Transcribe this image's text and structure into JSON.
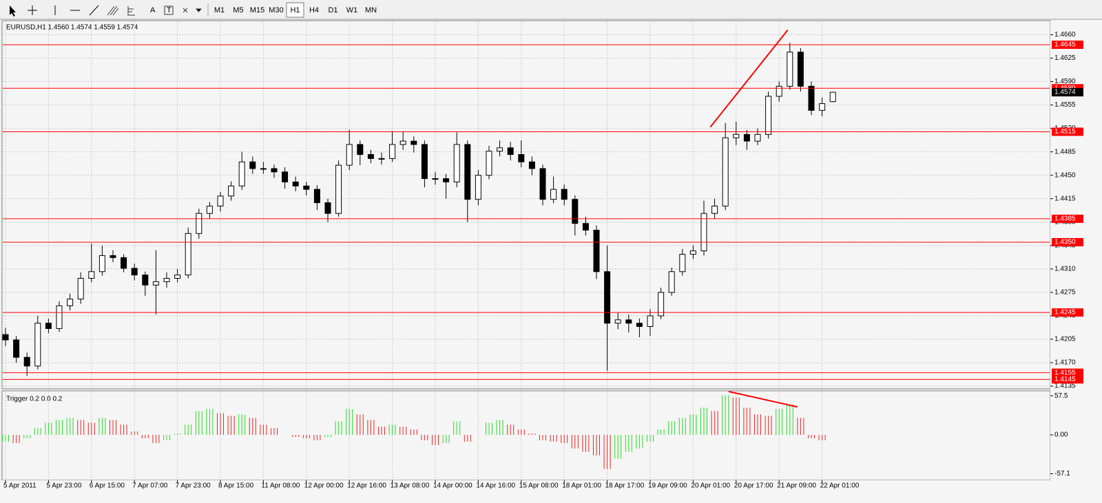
{
  "toolbar": {
    "text_tools": [
      "A",
      "T"
    ],
    "timeframes": [
      "M1",
      "M5",
      "M15",
      "M30",
      "H1",
      "H4",
      "D1",
      "W1",
      "MN"
    ],
    "active": "H1"
  },
  "chart_data": [
    {
      "type": "candlestick",
      "title": "EURUSD,H1  1.4560 1.4574 1.4559 1.4574",
      "bull_color": "#ffffff",
      "bear_color": "#000000",
      "line_color": "#000000",
      "ylim": [
        1.4131,
        1.4681
      ],
      "yticks": [
        1.4135,
        {
          "value": 1.417,
          "label": "1.4170"
        },
        1.4205,
        {
          "value": 1.424,
          "label": "1.4240"
        },
        1.4275,
        {
          "value": 1.431,
          "label": "1.4310"
        },
        1.4345,
        {
          "value": 1.438,
          "label": "1.4380"
        },
        1.4415,
        {
          "value": 1.445,
          "label": "1.4450"
        },
        1.4485,
        {
          "value": 1.452,
          "label": "1.4520"
        },
        1.4555,
        {
          "value": 1.459,
          "label": "1.4590"
        },
        1.4625,
        {
          "value": 1.466,
          "label": "1.4660"
        }
      ],
      "grid": true,
      "categories": [
        "5 Apr 2011",
        null,
        null,
        null,
        "5 Apr 23:00",
        null,
        null,
        null,
        "6 Apr 15:00",
        null,
        null,
        null,
        "7 Apr 07:00",
        null,
        null,
        null,
        "7 Apr 23:00",
        null,
        null,
        null,
        "8 Apr 15:00",
        null,
        null,
        null,
        "11 Apr 08:00",
        null,
        null,
        null,
        "12 Apr 00:00",
        null,
        null,
        null,
        "12 Apr 16:00",
        null,
        null,
        null,
        "13 Apr 08:00",
        null,
        null,
        null,
        "14 Apr 00:00",
        null,
        null,
        null,
        "14 Apr 16:00",
        null,
        null,
        null,
        "15 Apr 08:00",
        null,
        null,
        null,
        "18 Apr 01:00",
        null,
        null,
        null,
        "18 Apr 17:00",
        null,
        null,
        null,
        "19 Apr 09:00",
        null,
        null,
        null,
        "20 Apr 01:00",
        null,
        null,
        null,
        "20 Apr 17:00",
        null,
        null,
        null,
        "21 Apr 09:00",
        null,
        null,
        null,
        "22 Apr 01:00",
        null
      ],
      "ohlc": [
        [
          1.4212,
          1.4222,
          1.4195,
          1.4204
        ],
        [
          1.4204,
          1.421,
          1.417,
          1.4178
        ],
        [
          1.4178,
          1.4185,
          1.415,
          1.4165
        ],
        [
          1.4165,
          1.424,
          1.416,
          1.4229
        ],
        [
          1.4229,
          1.4236,
          1.4214,
          1.4221
        ],
        [
          1.4221,
          1.4262,
          1.4216,
          1.4255
        ],
        [
          1.4255,
          1.4273,
          1.4248,
          1.4265
        ],
        [
          1.4265,
          1.4305,
          1.4258,
          1.4296
        ],
        [
          1.4296,
          1.4348,
          1.429,
          1.4306
        ],
        [
          1.4306,
          1.4345,
          1.43,
          1.433
        ],
        [
          1.433,
          1.4338,
          1.432,
          1.4327
        ],
        [
          1.4327,
          1.4332,
          1.4305,
          1.4311
        ],
        [
          1.4311,
          1.4318,
          1.4293,
          1.4301
        ],
        [
          1.4301,
          1.4306,
          1.427,
          1.4286
        ],
        [
          1.4286,
          1.4338,
          1.4242,
          1.4291
        ],
        [
          1.4291,
          1.4305,
          1.4282,
          1.4296
        ],
        [
          1.4296,
          1.431,
          1.429,
          1.4301
        ],
        [
          1.4301,
          1.4372,
          1.4296,
          1.4363
        ],
        [
          1.4363,
          1.44,
          1.4355,
          1.4393
        ],
        [
          1.4393,
          1.441,
          1.4385,
          1.4404
        ],
        [
          1.4404,
          1.4425,
          1.4396,
          1.4419
        ],
        [
          1.4419,
          1.4441,
          1.4412,
          1.4434
        ],
        [
          1.4434,
          1.4485,
          1.4428,
          1.447
        ],
        [
          1.447,
          1.4478,
          1.4452,
          1.446
        ],
        [
          1.446,
          1.447,
          1.4452,
          1.446
        ],
        [
          1.446,
          1.4466,
          1.4446,
          1.4455
        ],
        [
          1.4455,
          1.4462,
          1.443,
          1.444
        ],
        [
          1.444,
          1.4448,
          1.4426,
          1.4434
        ],
        [
          1.4434,
          1.444,
          1.442,
          1.4429
        ],
        [
          1.4429,
          1.4435,
          1.4398,
          1.4409
        ],
        [
          1.4409,
          1.4415,
          1.438,
          1.4393
        ],
        [
          1.4393,
          1.4472,
          1.4388,
          1.4465
        ],
        [
          1.4465,
          1.4518,
          1.4458,
          1.4496
        ],
        [
          1.4496,
          1.4502,
          1.4465,
          1.4481
        ],
        [
          1.4481,
          1.4488,
          1.4468,
          1.4475
        ],
        [
          1.4475,
          1.4484,
          1.4466,
          1.4475
        ],
        [
          1.4475,
          1.4516,
          1.447,
          1.4496
        ],
        [
          1.4496,
          1.4515,
          1.4488,
          1.4501
        ],
        [
          1.4501,
          1.4508,
          1.4484,
          1.4496
        ],
        [
          1.4496,
          1.4502,
          1.4432,
          1.4445
        ],
        [
          1.4445,
          1.4455,
          1.4436,
          1.4445
        ],
        [
          1.4445,
          1.4452,
          1.4415,
          1.444
        ],
        [
          1.444,
          1.4514,
          1.4432,
          1.4496
        ],
        [
          1.4496,
          1.4502,
          1.438,
          1.4414
        ],
        [
          1.4414,
          1.4458,
          1.4405,
          1.445
        ],
        [
          1.445,
          1.4494,
          1.4444,
          1.4486
        ],
        [
          1.4486,
          1.4502,
          1.4478,
          1.4491
        ],
        [
          1.4491,
          1.45,
          1.4472,
          1.4481
        ],
        [
          1.4481,
          1.4502,
          1.4462,
          1.447
        ],
        [
          1.447,
          1.4478,
          1.445,
          1.446
        ],
        [
          1.446,
          1.4466,
          1.4405,
          1.4414
        ],
        [
          1.4414,
          1.4448,
          1.4408,
          1.4429
        ],
        [
          1.4429,
          1.4436,
          1.4405,
          1.4414
        ],
        [
          1.4414,
          1.442,
          1.436,
          1.4378
        ],
        [
          1.4378,
          1.4388,
          1.436,
          1.4368
        ],
        [
          1.4368,
          1.4375,
          1.4295,
          1.4306
        ],
        [
          1.4306,
          1.4345,
          1.4158,
          1.4229
        ],
        [
          1.4229,
          1.4245,
          1.422,
          1.4234
        ],
        [
          1.4234,
          1.4242,
          1.4215,
          1.4229
        ],
        [
          1.4229,
          1.4236,
          1.4208,
          1.4224
        ],
        [
          1.4224,
          1.425,
          1.421,
          1.424
        ],
        [
          1.424,
          1.4282,
          1.4235,
          1.4275
        ],
        [
          1.4275,
          1.4312,
          1.427,
          1.4306
        ],
        [
          1.4306,
          1.434,
          1.43,
          1.4332
        ],
        [
          1.4332,
          1.4345,
          1.4325,
          1.4337
        ],
        [
          1.4337,
          1.4412,
          1.433,
          1.4393
        ],
        [
          1.4393,
          1.4415,
          1.4385,
          1.4404
        ],
        [
          1.4404,
          1.4528,
          1.4398,
          1.4506
        ],
        [
          1.4506,
          1.453,
          1.4495,
          1.4511
        ],
        [
          1.4511,
          1.4518,
          1.4488,
          1.4501
        ],
        [
          1.4501,
          1.452,
          1.4495,
          1.4511
        ],
        [
          1.4511,
          1.4575,
          1.4505,
          1.4568
        ],
        [
          1.4568,
          1.459,
          1.456,
          1.4583
        ],
        [
          1.4583,
          1.4648,
          1.4578,
          1.4634
        ],
        [
          1.4634,
          1.464,
          1.4575,
          1.4583
        ],
        [
          1.4583,
          1.459,
          1.454,
          1.4547
        ],
        [
          1.4547,
          1.4566,
          1.4538,
          1.4557
        ],
        [
          1.456,
          1.4574,
          1.4559,
          1.4574
        ]
      ],
      "levels": [
        1.4645,
        {
          "value": 1.458,
          "label": "1.4580"
        },
        1.4515,
        1.4385,
        {
          "value": 1.435,
          "label": "1.4350"
        },
        1.4245,
        1.4155,
        1.4145
      ],
      "level_color": "#ff0000",
      "trendlines": [
        {
          "x": [
            65.6,
            72.8
          ],
          "y": [
            1.4522,
            1.4667
          ]
        }
      ]
    },
    {
      "type": "histogram",
      "title": "Trigger 0.2 0.0 0.2",
      "up_color": "#22dd22",
      "down_color": "#ee2222",
      "ylim": [
        -66.7,
        64.7
      ],
      "yticks": [
        57.5,
        {
          "value": 0,
          "label": "0.00"
        },
        -57.1
      ],
      "values": [
        -10,
        -12,
        -5,
        10,
        18,
        22,
        25,
        22,
        18,
        25,
        22,
        15,
        5,
        -5,
        -12,
        -8,
        2,
        15,
        35,
        38,
        32,
        28,
        30,
        25,
        15,
        10,
        0,
        -3,
        -5,
        -8,
        -3,
        20,
        38,
        30,
        22,
        12,
        15,
        12,
        8,
        -8,
        -15,
        -12,
        20,
        -10,
        0,
        18,
        22,
        15,
        8,
        2,
        -8,
        -10,
        -12,
        -20,
        -25,
        -30,
        -50,
        -35,
        -25,
        -20,
        -10,
        8,
        20,
        25,
        30,
        40,
        35,
        58,
        55,
        40,
        30,
        28,
        38,
        45,
        25,
        -5,
        -8,
        0
      ],
      "trendlines": [
        {
          "x": [
            67.3,
            73.7
          ],
          "y": [
            63.7,
            41.1
          ]
        }
      ]
    }
  ]
}
